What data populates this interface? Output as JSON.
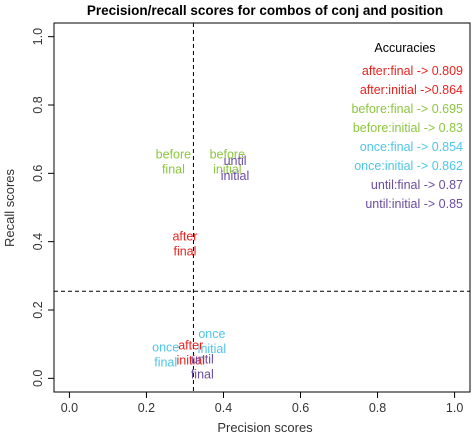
{
  "chart_data": {
    "type": "scatter",
    "title": "Precision/recall scores for combos of conj and position",
    "xlabel": "Precision scores",
    "ylabel": "Recall scores",
    "xlim": [
      -0.04,
      1.04
    ],
    "ylim": [
      -0.04,
      1.04
    ],
    "x_ticks": [
      "0.0",
      "0.2",
      "0.4",
      "0.6",
      "0.8",
      "1.0"
    ],
    "y_ticks": [
      "0.0",
      "0.2",
      "0.4",
      "0.6",
      "0.8",
      "1.0"
    ],
    "grid": false,
    "reference_lines": {
      "vertical_x": 0.322,
      "horizontal_y": 0.255
    },
    "points": [
      {
        "lines": [
          "before",
          "final"
        ],
        "x": 0.27,
        "y": 0.635,
        "color": "#8cc63e"
      },
      {
        "lines": [
          "before",
          "initial"
        ],
        "x": 0.41,
        "y": 0.635,
        "color": "#8cc63e"
      },
      {
        "lines": [
          "until",
          "initial"
        ],
        "x": 0.43,
        "y": 0.615,
        "color": "#6a4ca0"
      },
      {
        "lines": [
          "after",
          "final"
        ],
        "x": 0.3,
        "y": 0.395,
        "color": "#e8231f"
      },
      {
        "lines": [
          "once",
          "initial"
        ],
        "x": 0.37,
        "y": 0.11,
        "color": "#4fc5e8"
      },
      {
        "lines": [
          "once",
          "final"
        ],
        "x": 0.25,
        "y": 0.07,
        "color": "#4fc5e8"
      },
      {
        "lines": [
          "after",
          "initial"
        ],
        "x": 0.315,
        "y": 0.075,
        "color": "#e8231f"
      },
      {
        "lines": [
          "until",
          "final"
        ],
        "x": 0.345,
        "y": 0.035,
        "color": "#6a4ca0"
      }
    ],
    "legend": {
      "title": "Accuracies",
      "placement": "top-right",
      "entries": [
        {
          "text": "after:final -> 0.809",
          "color": "#e8231f"
        },
        {
          "text": "after:initial ->0.864",
          "color": "#e8231f"
        },
        {
          "text": "before:final -> 0.695",
          "color": "#8cc63e"
        },
        {
          "text": "before:initial -> 0.83",
          "color": "#8cc63e"
        },
        {
          "text": "once:final -> 0.854",
          "color": "#4fc5e8"
        },
        {
          "text": "once:initial -> 0.862",
          "color": "#4fc5e8"
        },
        {
          "text": "until:final -> 0.87",
          "color": "#6a4ca0"
        },
        {
          "text": "until:initial ->  0.85",
          "color": "#6a4ca0"
        }
      ]
    }
  }
}
